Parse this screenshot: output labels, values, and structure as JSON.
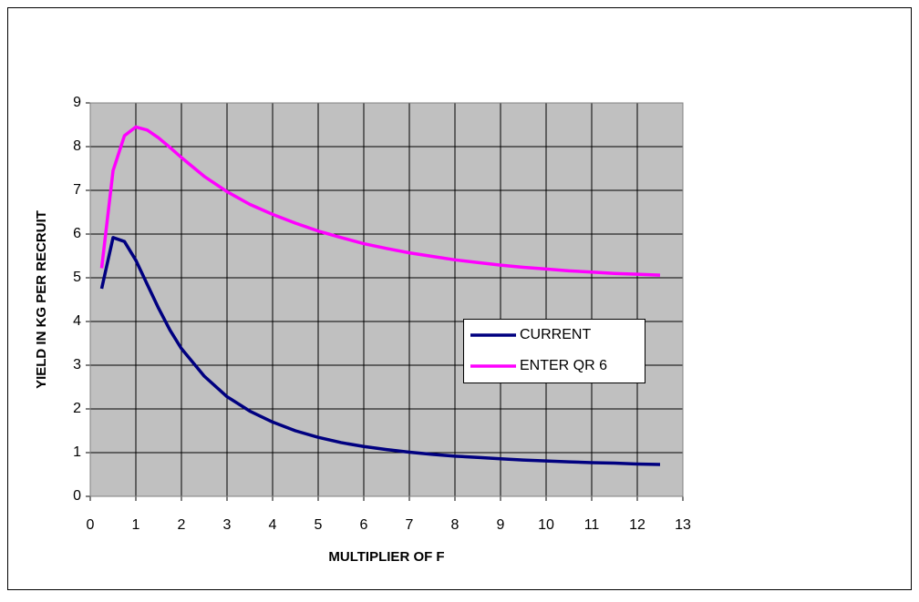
{
  "chart_data": {
    "type": "line",
    "xlabel": "MULTIPLIER OF F",
    "ylabel": "YIELD IN KG PER RECRUIT",
    "x": [
      0.25,
      0.5,
      0.75,
      1,
      1.25,
      1.5,
      1.75,
      2,
      2.5,
      3,
      3.5,
      4,
      4.5,
      5,
      5.5,
      6,
      6.5,
      7,
      7.5,
      8,
      8.5,
      9,
      9.5,
      10,
      10.5,
      11,
      11.5,
      12,
      12.5
    ],
    "series": [
      {
        "name": "CURRENT",
        "color": "#000080",
        "values": [
          4.75,
          5.92,
          5.83,
          5.4,
          4.85,
          4.3,
          3.8,
          3.38,
          2.75,
          2.28,
          1.95,
          1.7,
          1.5,
          1.35,
          1.23,
          1.14,
          1.07,
          1.01,
          0.96,
          0.92,
          0.89,
          0.86,
          0.83,
          0.81,
          0.79,
          0.77,
          0.76,
          0.74,
          0.73
        ]
      },
      {
        "name": "ENTER QR 6",
        "color": "#ff00ff",
        "values": [
          5.22,
          7.45,
          8.25,
          8.45,
          8.38,
          8.2,
          7.98,
          7.75,
          7.32,
          6.97,
          6.68,
          6.45,
          6.25,
          6.07,
          5.92,
          5.78,
          5.67,
          5.57,
          5.49,
          5.41,
          5.35,
          5.29,
          5.24,
          5.2,
          5.16,
          5.13,
          5.1,
          5.08,
          5.06
        ]
      }
    ],
    "xlim": [
      0,
      13
    ],
    "xticks": [
      0,
      1,
      2,
      3,
      4,
      5,
      6,
      7,
      8,
      9,
      10,
      11,
      12,
      13
    ],
    "ylim": [
      0,
      9
    ],
    "yticks": [
      0,
      1,
      2,
      3,
      4,
      5,
      6,
      7,
      8,
      9
    ],
    "grid": true,
    "legend": "right",
    "plot_background": "#c0c0c0"
  }
}
